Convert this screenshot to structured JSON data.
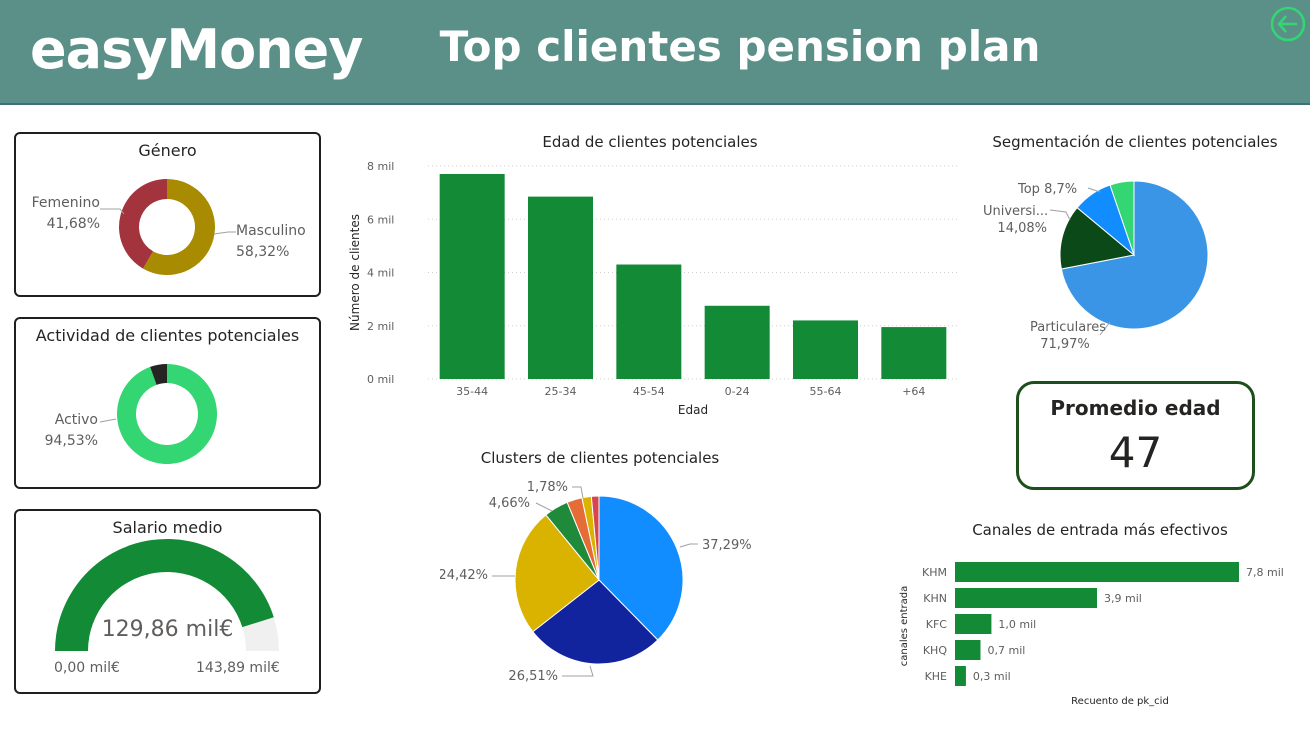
{
  "header": {
    "brand": "easyMoney",
    "title": "Top clientes pension plan",
    "back_icon": "arrow-left-circle-icon",
    "color": "#5a9088"
  },
  "chart_data": [
    {
      "id": "genero",
      "type": "pie",
      "title": "Género",
      "donut": true,
      "labels": [
        "Masculino",
        "Femenino"
      ],
      "display": [
        "58,32%",
        "41,68%"
      ],
      "values": [
        58.32,
        41.68
      ],
      "colors": [
        "#a88b00",
        "#a3333d"
      ]
    },
    {
      "id": "actividad",
      "type": "pie",
      "title": "Actividad de clientes potenciales",
      "donut": true,
      "labels": [
        "Activo",
        ""
      ],
      "display": [
        "94,53%",
        ""
      ],
      "values": [
        94.53,
        5.47
      ],
      "colors": [
        "#33d672",
        "#252423"
      ]
    },
    {
      "id": "salario",
      "type": "gauge",
      "title": "Salario medio",
      "value": 129.86,
      "value_label": "129,86 mil€",
      "min": 0,
      "max": 143.89,
      "min_label": "0,00 mil€",
      "max_label": "143,89 mil€",
      "colors": [
        "#138a36",
        "#f0f0f0"
      ]
    },
    {
      "id": "edad",
      "type": "bar",
      "title": "Edad de clientes potenciales",
      "xlabel": "Edad",
      "ylabel": "Número de clientes",
      "categories": [
        "35-44",
        "25-34",
        "45-54",
        "0-24",
        "55-64",
        "+64"
      ],
      "values": [
        7700,
        6850,
        4300,
        2750,
        2200,
        1950
      ],
      "yticks": [
        0,
        2000,
        4000,
        6000,
        8000
      ],
      "ytick_labels": [
        "0 mil",
        "2 mil",
        "4 mil",
        "6 mil",
        "8 mil"
      ],
      "ylim": [
        0,
        8000
      ],
      "grid": true,
      "color": "#138a36"
    },
    {
      "id": "segmentacion",
      "type": "pie",
      "title": "Segmentación de clientes potenciales",
      "labels": [
        "Particulares",
        "Universi...",
        "Top",
        ""
      ],
      "display": [
        "71,97%",
        "14,08%",
        "8,7%",
        ""
      ],
      "values": [
        71.97,
        14.08,
        8.7,
        5.25
      ],
      "colors": [
        "#3b95e6",
        "#0b4a18",
        "#118dff",
        "#33d672"
      ]
    },
    {
      "id": "clusters",
      "type": "pie",
      "title": "Clusters de clientes potenciales",
      "labels": [
        "",
        "",
        "",
        "",
        "",
        "",
        ""
      ],
      "display": [
        "37,29%",
        "26,51%",
        "24,42%",
        "4,66%",
        "",
        "1,78%",
        ""
      ],
      "values": [
        37.29,
        26.51,
        24.42,
        4.66,
        2.9,
        1.78,
        1.44
      ],
      "colors": [
        "#118dff",
        "#12239e",
        "#dab300",
        "#1f8a3a",
        "#e66c37",
        "#d9b300",
        "#d64550"
      ]
    },
    {
      "id": "canales",
      "type": "bar",
      "orientation": "horizontal",
      "title": "Canales de entrada más efectivos",
      "xlabel": "Recuento de pk_cid",
      "ylabel": "canales entrada",
      "categories": [
        "KHM",
        "KHN",
        "KFC",
        "KHQ",
        "KHE"
      ],
      "values": [
        7800,
        3900,
        1000,
        700,
        300
      ],
      "data_labels": [
        "7,8 mil",
        "3,9 mil",
        "1,0 mil",
        "0,7 mil",
        "0,3 mil"
      ],
      "color": "#138a36"
    }
  ],
  "kpi": {
    "title": "Promedio edad",
    "value": "47"
  }
}
